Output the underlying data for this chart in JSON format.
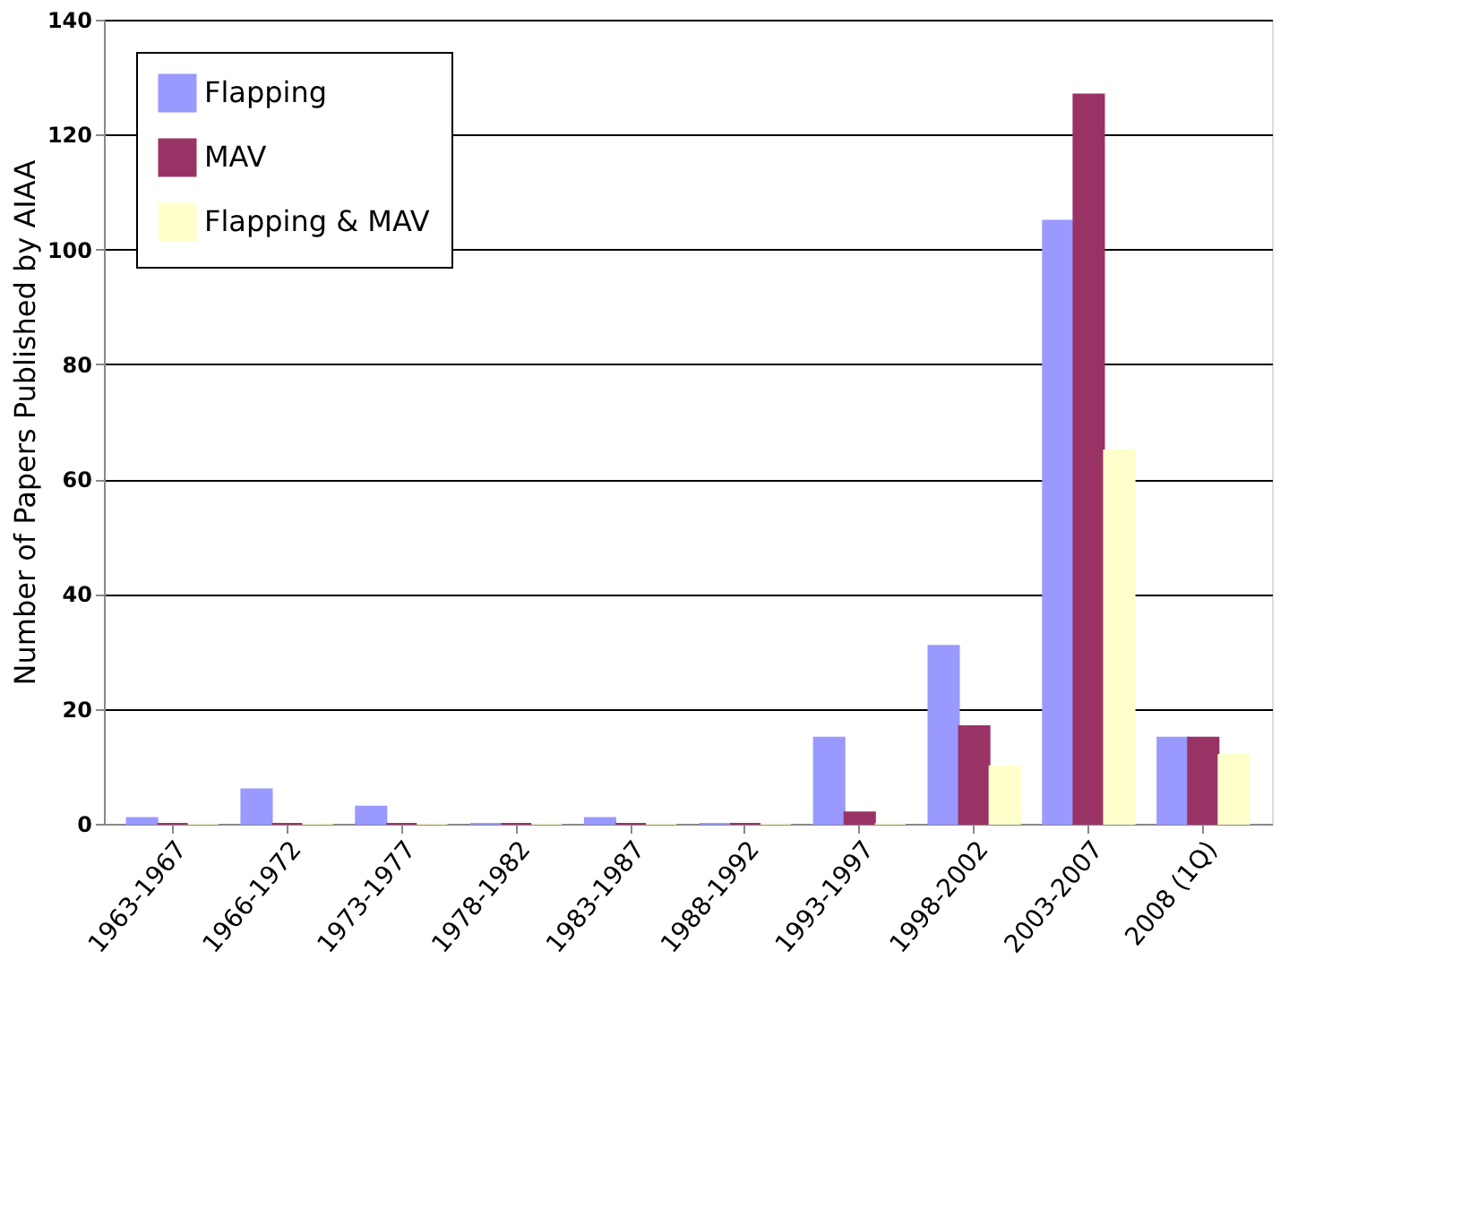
{
  "chart_data": {
    "type": "bar",
    "ylabel": "Number of Papers Published by AIAA",
    "categories": [
      "1963-1967",
      "1966-1972",
      "1973-1977",
      "1978-1982",
      "1983-1987",
      "1988-1992",
      "1993-1997",
      "1998-2002",
      "2003-2007",
      "2008 (1Q)"
    ],
    "series": [
      {
        "name": "Flapping",
        "color": "#9999ff",
        "values": [
          1,
          6,
          3,
          0,
          1,
          0,
          15,
          31,
          105,
          15
        ]
      },
      {
        "name": "MAV",
        "color": "#993366",
        "values": [
          0,
          0,
          0,
          0,
          0,
          0,
          2,
          17,
          127,
          15
        ]
      },
      {
        "name": "Flapping & MAV",
        "color": "#ffffcc",
        "values": [
          0,
          0,
          0,
          0,
          0,
          0,
          0,
          10,
          65,
          12
        ]
      }
    ],
    "ylim": [
      0,
      140
    ],
    "yticks": [
      0,
      20,
      40,
      60,
      80,
      100,
      120,
      140
    ],
    "grid": "y",
    "legend": "top left"
  }
}
